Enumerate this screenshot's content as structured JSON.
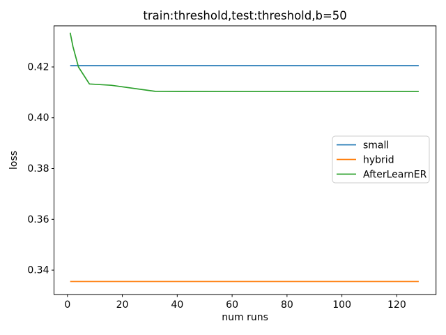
{
  "figure": {
    "background": "#ffffff",
    "text_color": "#000000",
    "spine_color": "#000000",
    "legend_border_color": "#cccccc"
  },
  "chart_data": {
    "type": "line",
    "title": "train:threshold,test:threshold,b=50",
    "xlabel": "num runs",
    "ylabel": "loss",
    "x": [
      1,
      2,
      4,
      8,
      16,
      32,
      64,
      128
    ],
    "series": [
      {
        "name": "small",
        "color": "#1f77b4",
        "values": [
          0.4205,
          0.4205,
          0.4205,
          0.4205,
          0.4205,
          0.4205,
          0.4205,
          0.4205
        ]
      },
      {
        "name": "hybrid",
        "color": "#ff7f0e",
        "values": [
          0.3355,
          0.3355,
          0.3355,
          0.3355,
          0.3355,
          0.3355,
          0.3355,
          0.3355
        ]
      },
      {
        "name": "AfterLearnER",
        "color": "#2ca02c",
        "values": [
          0.4335,
          0.428,
          0.42,
          0.4133,
          0.4128,
          0.4104,
          0.4103,
          0.4103
        ]
      }
    ],
    "xlim": [
      -4.9,
      134.3
    ],
    "ylim": [
      0.3304,
      0.4362
    ],
    "xticks": {
      "positions": [
        0,
        20,
        40,
        60,
        80,
        100,
        120
      ],
      "labels": [
        "0",
        "20",
        "40",
        "60",
        "80",
        "100",
        "120"
      ]
    },
    "yticks": {
      "positions": [
        0.34,
        0.36,
        0.38,
        0.4,
        0.42
      ],
      "labels": [
        "0.34",
        "0.36",
        "0.38",
        "0.40",
        "0.42"
      ]
    },
    "grid": false,
    "legend_position": "center right",
    "legend_labels": [
      "small",
      "hybrid",
      "AfterLearnER"
    ]
  }
}
